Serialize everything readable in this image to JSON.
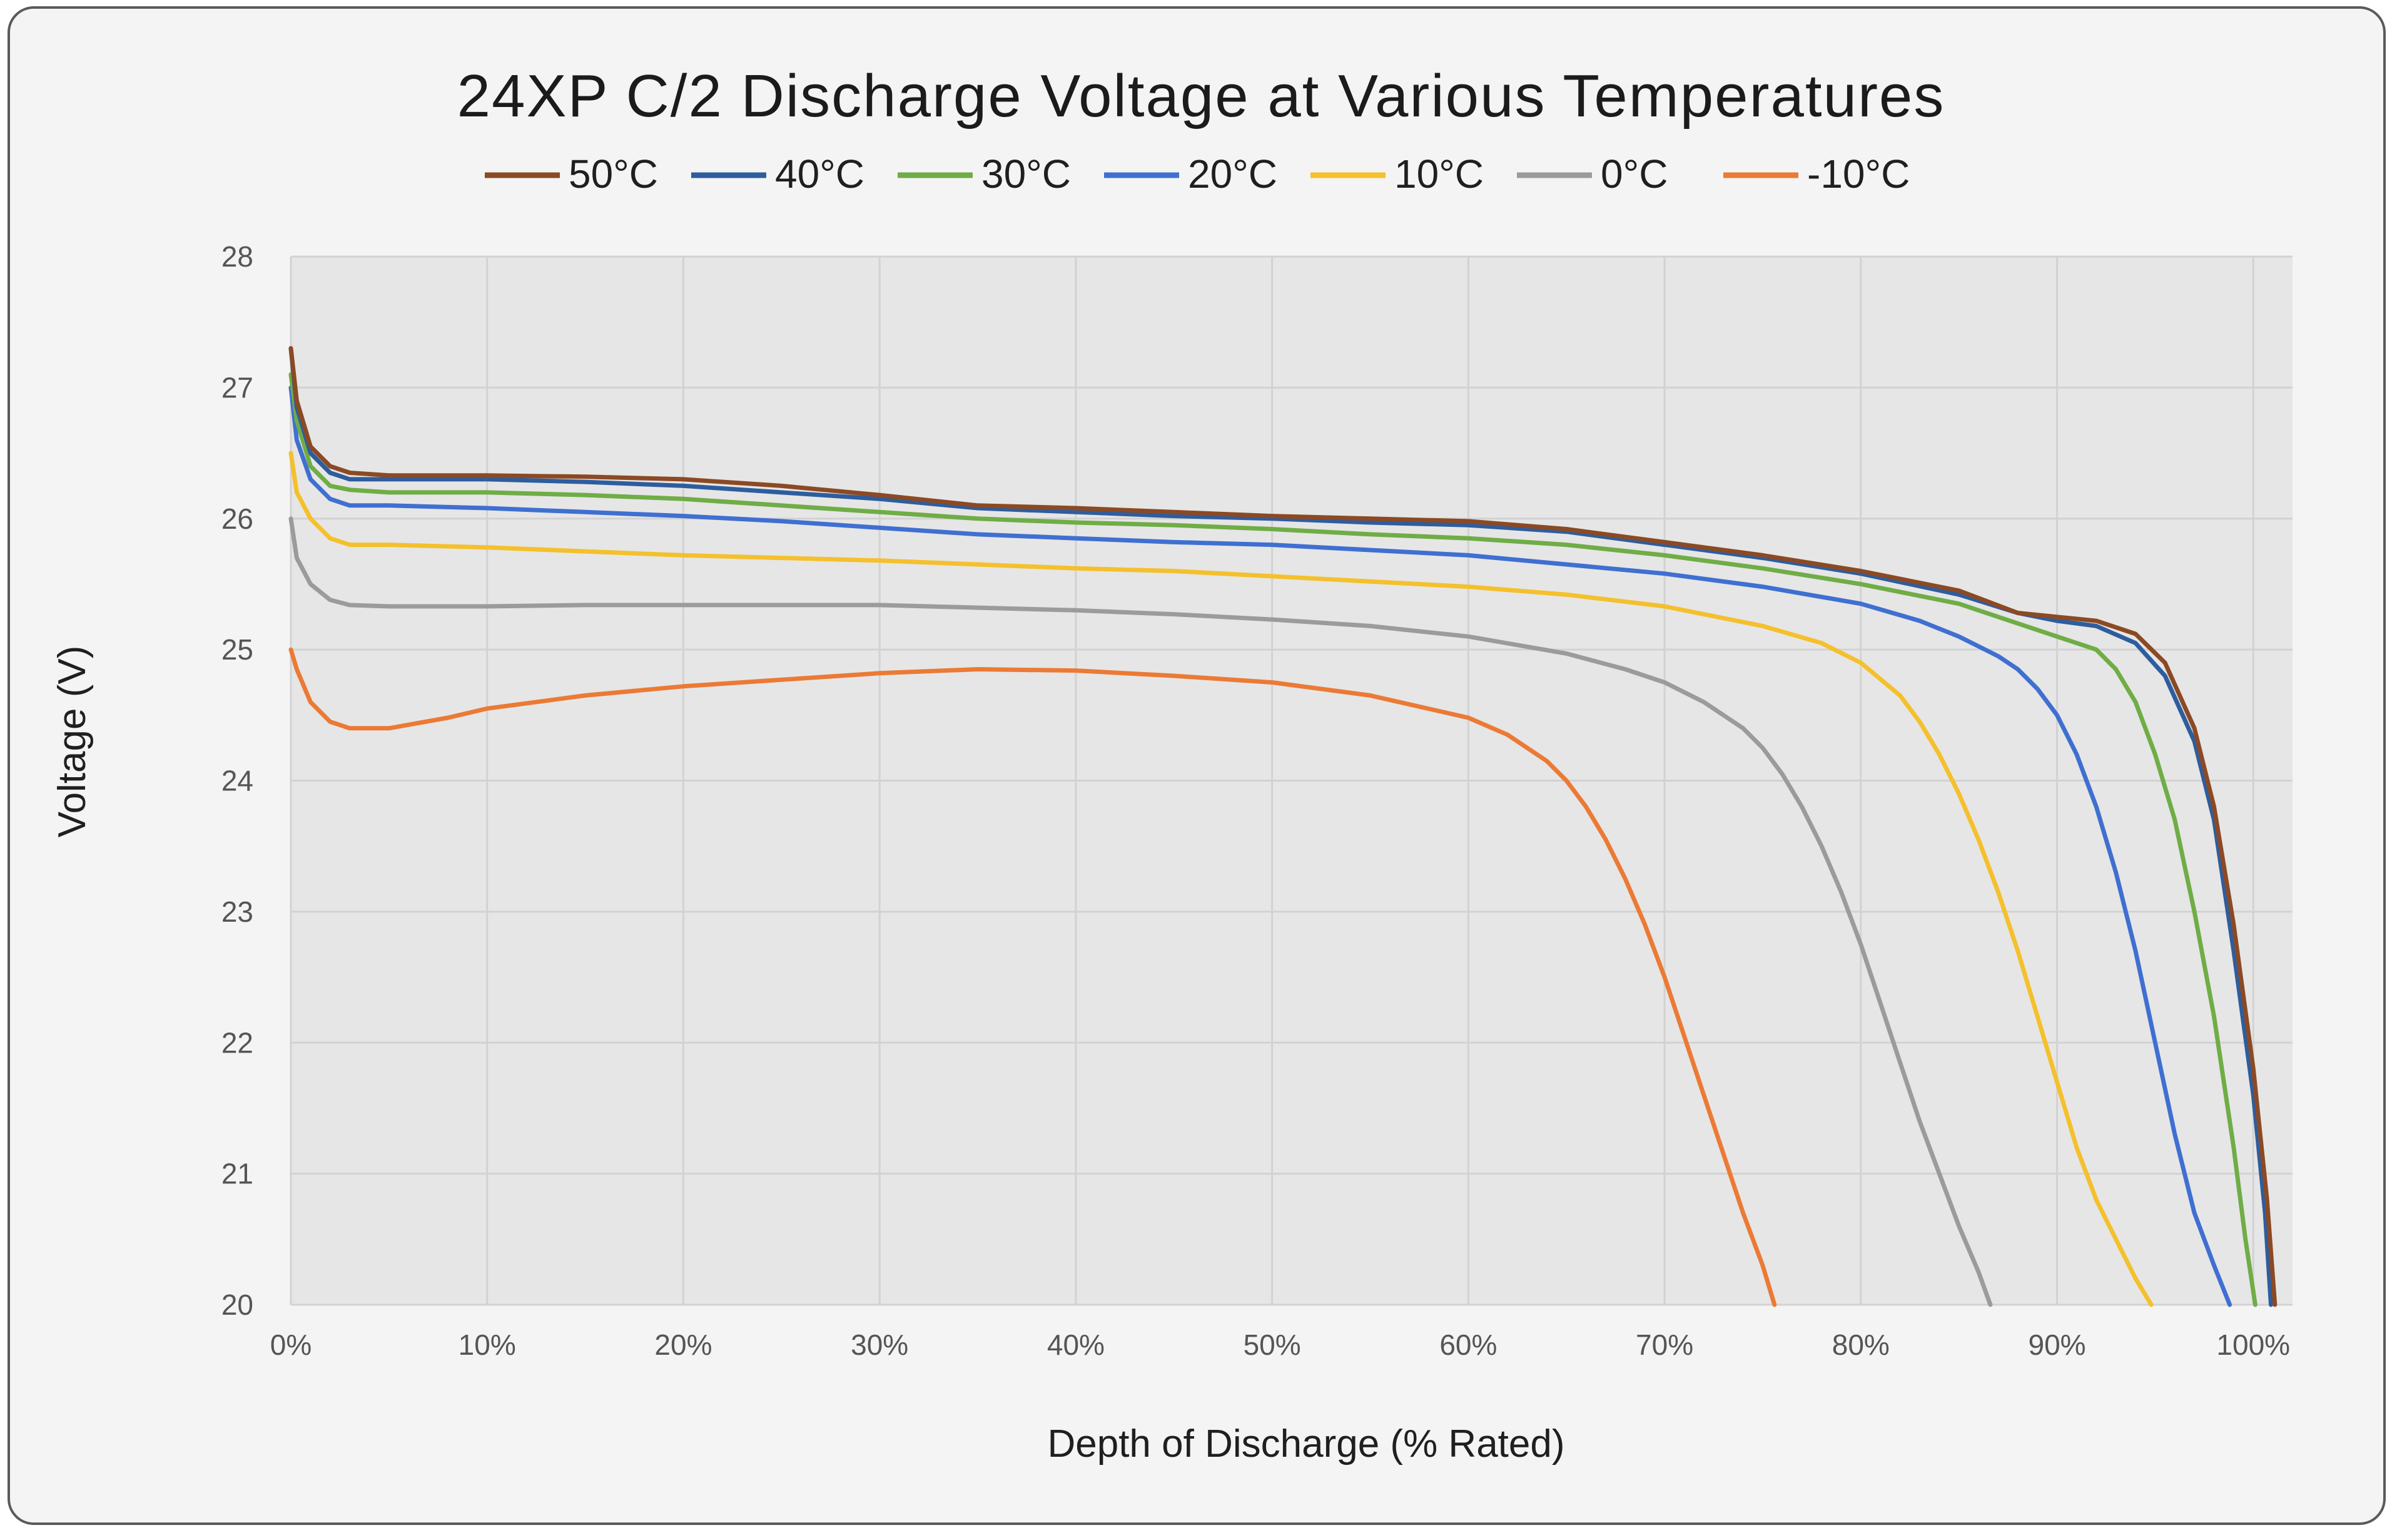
{
  "chart_data": {
    "type": "line",
    "title": "24XP C/2 Discharge Voltage at Various Temperatures",
    "xlabel": "Depth of Discharge (% Rated)",
    "ylabel": "Voltage (V)",
    "xlim": [
      0,
      102
    ],
    "ylim": [
      20,
      28
    ],
    "xticks": [
      0,
      10,
      20,
      30,
      40,
      50,
      60,
      70,
      80,
      90,
      100
    ],
    "xtick_labels": [
      "0%",
      "10%",
      "20%",
      "30%",
      "40%",
      "50%",
      "60%",
      "70%",
      "80%",
      "90%",
      "100%"
    ],
    "yticks": [
      20,
      21,
      22,
      23,
      24,
      25,
      26,
      27,
      28
    ],
    "ytick_labels": [
      "20",
      "21",
      "22",
      "23",
      "24",
      "25",
      "26",
      "27",
      "28"
    ],
    "grid": true,
    "legend_position": "top",
    "series": [
      {
        "name": "50°C",
        "color": "#8b4a24",
        "points": [
          [
            0,
            27.3
          ],
          [
            0.3,
            26.9
          ],
          [
            1,
            26.55
          ],
          [
            2,
            26.4
          ],
          [
            3,
            26.35
          ],
          [
            5,
            26.33
          ],
          [
            10,
            26.33
          ],
          [
            15,
            26.32
          ],
          [
            20,
            26.3
          ],
          [
            25,
            26.25
          ],
          [
            30,
            26.18
          ],
          [
            35,
            26.1
          ],
          [
            40,
            26.08
          ],
          [
            45,
            26.05
          ],
          [
            50,
            26.02
          ],
          [
            55,
            26.0
          ],
          [
            60,
            25.98
          ],
          [
            65,
            25.92
          ],
          [
            70,
            25.82
          ],
          [
            75,
            25.72
          ],
          [
            80,
            25.6
          ],
          [
            85,
            25.45
          ],
          [
            88,
            25.28
          ],
          [
            90,
            25.25
          ],
          [
            92,
            25.22
          ],
          [
            94,
            25.12
          ],
          [
            95.5,
            24.9
          ],
          [
            97,
            24.4
          ],
          [
            98,
            23.8
          ],
          [
            99,
            22.9
          ],
          [
            100,
            21.8
          ],
          [
            100.7,
            20.8
          ],
          [
            101.1,
            20.0
          ]
        ]
      },
      {
        "name": "40°C",
        "color": "#2e5d9e",
        "points": [
          [
            0,
            27.3
          ],
          [
            0.3,
            26.85
          ],
          [
            1,
            26.5
          ],
          [
            2,
            26.35
          ],
          [
            3,
            26.3
          ],
          [
            5,
            26.3
          ],
          [
            10,
            26.3
          ],
          [
            15,
            26.28
          ],
          [
            20,
            26.25
          ],
          [
            25,
            26.2
          ],
          [
            30,
            26.15
          ],
          [
            35,
            26.08
          ],
          [
            40,
            26.05
          ],
          [
            45,
            26.02
          ],
          [
            50,
            26.0
          ],
          [
            55,
            25.97
          ],
          [
            60,
            25.95
          ],
          [
            65,
            25.9
          ],
          [
            70,
            25.8
          ],
          [
            75,
            25.7
          ],
          [
            80,
            25.58
          ],
          [
            85,
            25.42
          ],
          [
            88,
            25.28
          ],
          [
            90,
            25.22
          ],
          [
            92,
            25.18
          ],
          [
            94,
            25.05
          ],
          [
            95.5,
            24.8
          ],
          [
            97,
            24.3
          ],
          [
            98,
            23.7
          ],
          [
            99,
            22.7
          ],
          [
            100,
            21.6
          ],
          [
            100.6,
            20.7
          ],
          [
            100.9,
            20.0
          ]
        ]
      },
      {
        "name": "30°C",
        "color": "#6fad46",
        "points": [
          [
            0,
            27.1
          ],
          [
            0.3,
            26.75
          ],
          [
            1,
            26.4
          ],
          [
            2,
            26.25
          ],
          [
            3,
            26.22
          ],
          [
            5,
            26.2
          ],
          [
            10,
            26.2
          ],
          [
            15,
            26.18
          ],
          [
            20,
            26.15
          ],
          [
            25,
            26.1
          ],
          [
            30,
            26.05
          ],
          [
            35,
            26.0
          ],
          [
            40,
            25.97
          ],
          [
            45,
            25.95
          ],
          [
            50,
            25.92
          ],
          [
            55,
            25.88
          ],
          [
            60,
            25.85
          ],
          [
            65,
            25.8
          ],
          [
            70,
            25.72
          ],
          [
            75,
            25.62
          ],
          [
            80,
            25.5
          ],
          [
            85,
            25.35
          ],
          [
            88,
            25.2
          ],
          [
            90,
            25.1
          ],
          [
            92,
            25.0
          ],
          [
            93,
            24.85
          ],
          [
            94,
            24.6
          ],
          [
            95,
            24.2
          ],
          [
            96,
            23.7
          ],
          [
            97,
            23.0
          ],
          [
            98,
            22.2
          ],
          [
            99,
            21.2
          ],
          [
            99.6,
            20.5
          ],
          [
            100.1,
            20.0
          ]
        ]
      },
      {
        "name": "20°C",
        "color": "#3f6fd1",
        "points": [
          [
            0,
            27.0
          ],
          [
            0.3,
            26.6
          ],
          [
            1,
            26.3
          ],
          [
            2,
            26.15
          ],
          [
            3,
            26.1
          ],
          [
            5,
            26.1
          ],
          [
            10,
            26.08
          ],
          [
            15,
            26.05
          ],
          [
            20,
            26.02
          ],
          [
            25,
            25.98
          ],
          [
            30,
            25.93
          ],
          [
            35,
            25.88
          ],
          [
            40,
            25.85
          ],
          [
            45,
            25.82
          ],
          [
            50,
            25.8
          ],
          [
            55,
            25.76
          ],
          [
            60,
            25.72
          ],
          [
            65,
            25.65
          ],
          [
            70,
            25.58
          ],
          [
            75,
            25.48
          ],
          [
            80,
            25.35
          ],
          [
            83,
            25.22
          ],
          [
            85,
            25.1
          ],
          [
            87,
            24.95
          ],
          [
            88,
            24.85
          ],
          [
            89,
            24.7
          ],
          [
            90,
            24.5
          ],
          [
            91,
            24.2
          ],
          [
            92,
            23.8
          ],
          [
            93,
            23.3
          ],
          [
            94,
            22.7
          ],
          [
            95,
            22.0
          ],
          [
            96,
            21.3
          ],
          [
            97,
            20.7
          ],
          [
            98,
            20.3
          ],
          [
            98.8,
            20.0
          ]
        ]
      },
      {
        "name": "10°C",
        "color": "#f4c02c",
        "points": [
          [
            0,
            26.5
          ],
          [
            0.3,
            26.2
          ],
          [
            1,
            26.0
          ],
          [
            2,
            25.85
          ],
          [
            3,
            25.8
          ],
          [
            5,
            25.8
          ],
          [
            10,
            25.78
          ],
          [
            15,
            25.75
          ],
          [
            20,
            25.72
          ],
          [
            25,
            25.7
          ],
          [
            30,
            25.68
          ],
          [
            35,
            25.65
          ],
          [
            40,
            25.62
          ],
          [
            45,
            25.6
          ],
          [
            50,
            25.56
          ],
          [
            55,
            25.52
          ],
          [
            60,
            25.48
          ],
          [
            65,
            25.42
          ],
          [
            70,
            25.33
          ],
          [
            75,
            25.18
          ],
          [
            78,
            25.05
          ],
          [
            80,
            24.9
          ],
          [
            82,
            24.65
          ],
          [
            83,
            24.45
          ],
          [
            84,
            24.2
          ],
          [
            85,
            23.9
          ],
          [
            86,
            23.55
          ],
          [
            87,
            23.15
          ],
          [
            88,
            22.7
          ],
          [
            89,
            22.2
          ],
          [
            90,
            21.7
          ],
          [
            91,
            21.2
          ],
          [
            92,
            20.8
          ],
          [
            93,
            20.5
          ],
          [
            94,
            20.2
          ],
          [
            94.8,
            20.0
          ]
        ]
      },
      {
        "name": "0°C",
        "color": "#9b9b9b",
        "points": [
          [
            0,
            26.0
          ],
          [
            0.3,
            25.7
          ],
          [
            1,
            25.5
          ],
          [
            2,
            25.38
          ],
          [
            3,
            25.34
          ],
          [
            5,
            25.33
          ],
          [
            10,
            25.33
          ],
          [
            15,
            25.34
          ],
          [
            20,
            25.34
          ],
          [
            25,
            25.34
          ],
          [
            30,
            25.34
          ],
          [
            35,
            25.32
          ],
          [
            40,
            25.3
          ],
          [
            45,
            25.27
          ],
          [
            50,
            25.23
          ],
          [
            55,
            25.18
          ],
          [
            60,
            25.1
          ],
          [
            65,
            24.97
          ],
          [
            68,
            24.85
          ],
          [
            70,
            24.75
          ],
          [
            72,
            24.6
          ],
          [
            74,
            24.4
          ],
          [
            75,
            24.25
          ],
          [
            76,
            24.05
          ],
          [
            77,
            23.8
          ],
          [
            78,
            23.5
          ],
          [
            79,
            23.15
          ],
          [
            80,
            22.75
          ],
          [
            81,
            22.3
          ],
          [
            82,
            21.85
          ],
          [
            83,
            21.4
          ],
          [
            84,
            21.0
          ],
          [
            85,
            20.6
          ],
          [
            86,
            20.25
          ],
          [
            86.6,
            20.0
          ]
        ]
      },
      {
        "name": "-10°C",
        "color": "#eb7a35",
        "points": [
          [
            0,
            25.0
          ],
          [
            0.3,
            24.85
          ],
          [
            1,
            24.6
          ],
          [
            2,
            24.45
          ],
          [
            3,
            24.4
          ],
          [
            5,
            24.4
          ],
          [
            8,
            24.48
          ],
          [
            10,
            24.55
          ],
          [
            15,
            24.65
          ],
          [
            20,
            24.72
          ],
          [
            25,
            24.77
          ],
          [
            30,
            24.82
          ],
          [
            35,
            24.85
          ],
          [
            40,
            24.84
          ],
          [
            45,
            24.8
          ],
          [
            50,
            24.75
          ],
          [
            55,
            24.65
          ],
          [
            60,
            24.48
          ],
          [
            62,
            24.35
          ],
          [
            64,
            24.15
          ],
          [
            65,
            24.0
          ],
          [
            66,
            23.8
          ],
          [
            67,
            23.55
          ],
          [
            68,
            23.25
          ],
          [
            69,
            22.9
          ],
          [
            70,
            22.5
          ],
          [
            71,
            22.05
          ],
          [
            72,
            21.6
          ],
          [
            73,
            21.15
          ],
          [
            74,
            20.7
          ],
          [
            75,
            20.3
          ],
          [
            75.6,
            20.0
          ]
        ]
      }
    ]
  }
}
